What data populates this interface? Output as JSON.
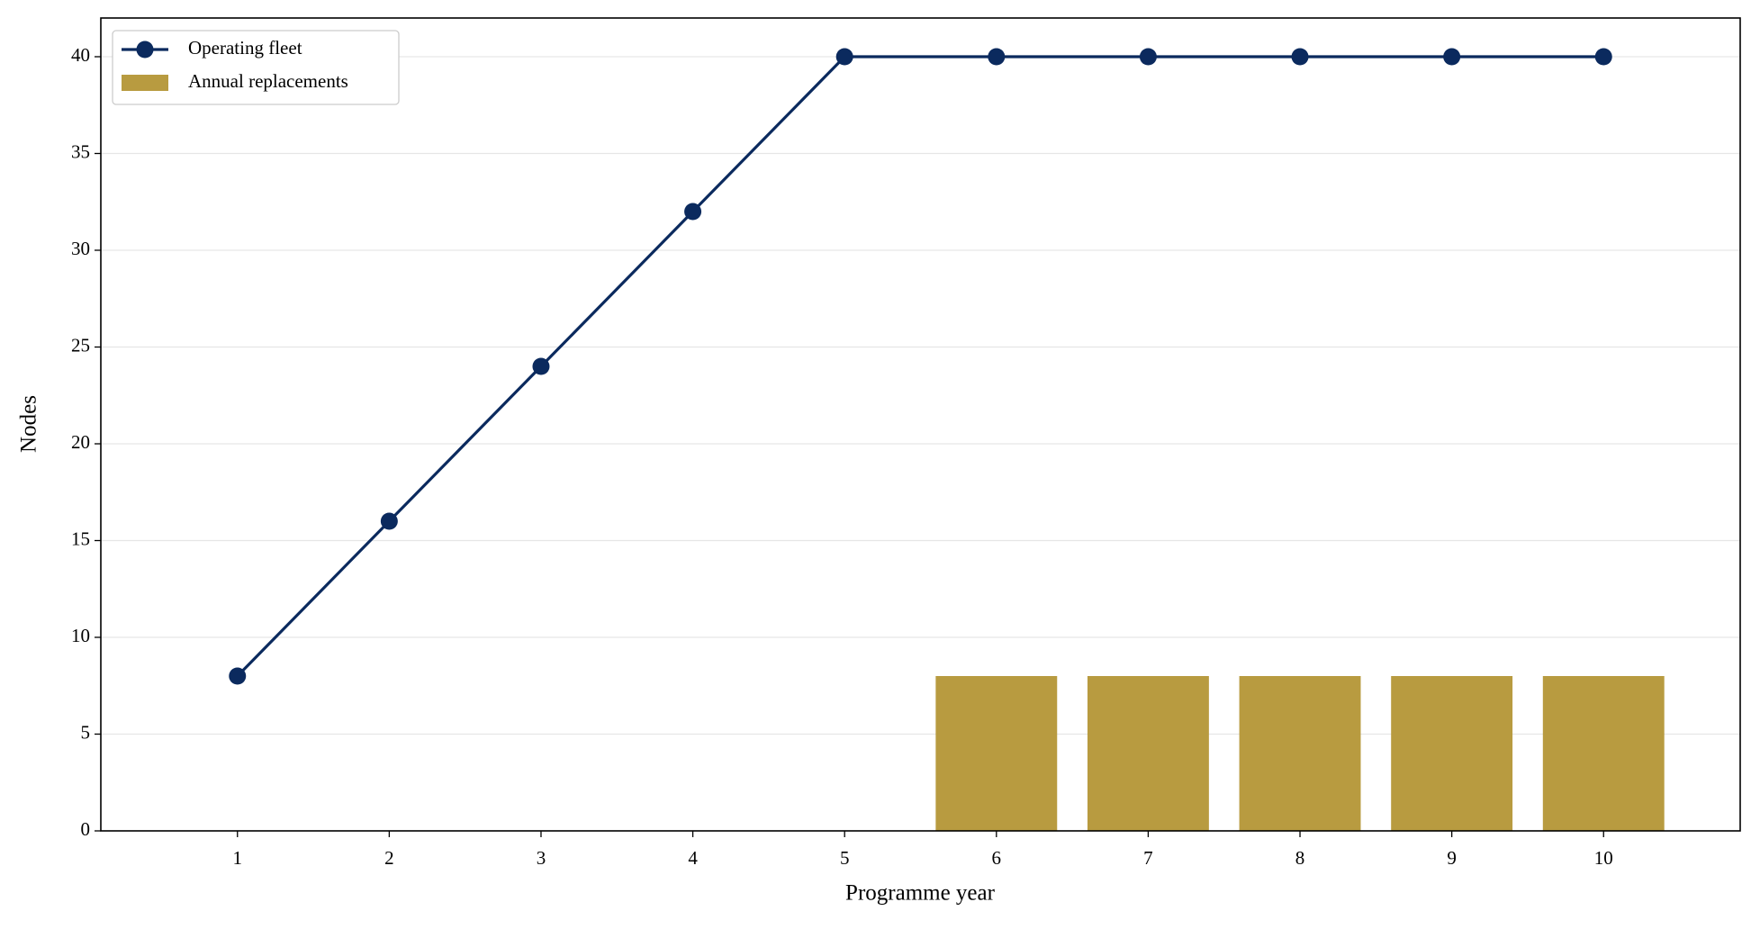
{
  "chart_data": {
    "type": "combo",
    "xlabel": "Programme year",
    "ylabel": "Nodes",
    "xlim": [
      0.1,
      10.9
    ],
    "xticks": [
      1,
      2,
      3,
      4,
      5,
      6,
      7,
      8,
      9,
      10
    ],
    "ylim": [
      0,
      42
    ],
    "yticks": [
      0,
      5,
      10,
      15,
      20,
      25,
      30,
      35,
      40
    ],
    "grid": "y",
    "legend": "upper left",
    "series": [
      {
        "name": "Operating fleet",
        "type": "line",
        "color": "#0b2a5e",
        "x": [
          1,
          2,
          3,
          4,
          5,
          6,
          7,
          8,
          9,
          10
        ],
        "values": [
          8,
          16,
          24,
          32,
          40,
          40,
          40,
          40,
          40,
          40
        ]
      },
      {
        "name": "Annual replacements",
        "type": "bar",
        "color": "#b89b40",
        "x": [
          6,
          7,
          8,
          9,
          10
        ],
        "values": [
          8,
          8,
          8,
          8,
          8
        ]
      }
    ]
  }
}
